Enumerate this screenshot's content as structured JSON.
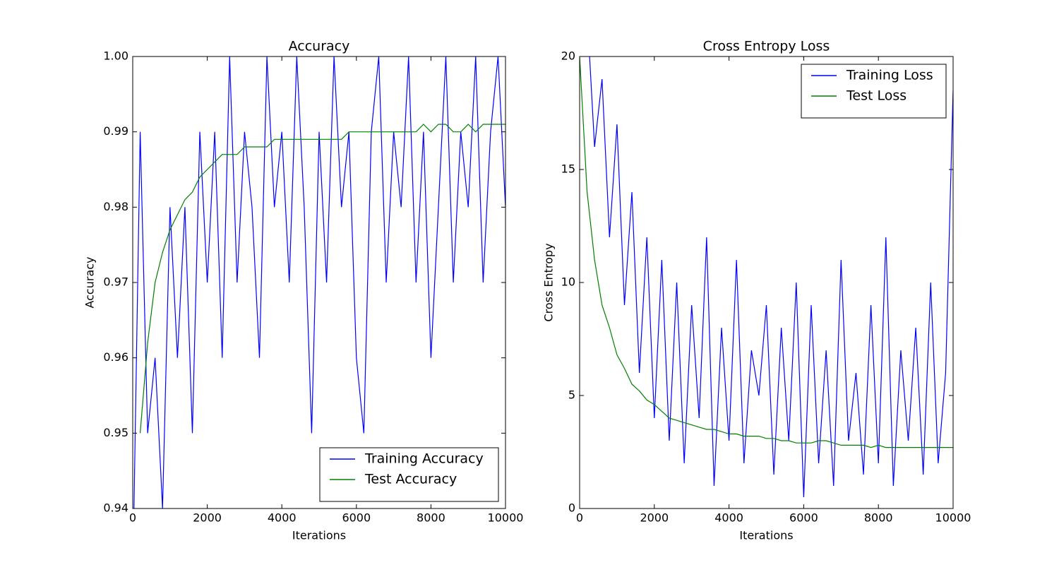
{
  "chart_data": [
    {
      "type": "line",
      "title": "Accuracy",
      "xlabel": "Iterations",
      "ylabel": "Accuracy",
      "x": [
        0,
        200,
        400,
        600,
        800,
        1000,
        1200,
        1400,
        1600,
        1800,
        2000,
        2200,
        2400,
        2600,
        2800,
        3000,
        3200,
        3400,
        3600,
        3800,
        4000,
        4200,
        4400,
        4600,
        4800,
        5000,
        5200,
        5400,
        5600,
        5800,
        6000,
        6200,
        6400,
        6600,
        6800,
        7000,
        7200,
        7400,
        7600,
        7800,
        8000,
        8200,
        8400,
        8600,
        8800,
        9000,
        9200,
        9400,
        9600,
        9800,
        10000
      ],
      "series": [
        {
          "name": "Training Accuracy",
          "color": "#0000ff",
          "values": [
            0.93,
            0.99,
            0.95,
            0.96,
            0.94,
            0.98,
            0.96,
            0.98,
            0.95,
            0.99,
            0.97,
            0.99,
            0.96,
            1.0,
            0.97,
            0.99,
            0.98,
            0.96,
            1.0,
            0.98,
            0.99,
            0.97,
            1.0,
            0.98,
            0.95,
            0.99,
            0.97,
            1.0,
            0.98,
            0.99,
            0.96,
            0.95,
            0.99,
            1.0,
            0.97,
            0.99,
            0.98,
            1.0,
            0.97,
            0.99,
            0.96,
            0.98,
            1.0,
            0.97,
            0.99,
            0.98,
            1.0,
            0.97,
            0.99,
            1.0,
            0.98
          ]
        },
        {
          "name": "Test Accuracy",
          "color": "#008000",
          "values": [
            null,
            0.95,
            0.962,
            0.97,
            0.974,
            0.977,
            0.979,
            0.981,
            0.982,
            0.984,
            0.985,
            0.986,
            0.987,
            0.987,
            0.987,
            0.988,
            0.988,
            0.988,
            0.988,
            0.989,
            0.989,
            0.989,
            0.989,
            0.989,
            0.989,
            0.989,
            0.989,
            0.989,
            0.989,
            0.99,
            0.99,
            0.99,
            0.99,
            0.99,
            0.99,
            0.99,
            0.99,
            0.99,
            0.99,
            0.991,
            0.99,
            0.991,
            0.991,
            0.99,
            0.99,
            0.991,
            0.99,
            0.991,
            0.991,
            0.991,
            0.991
          ]
        }
      ],
      "xlim": [
        0,
        10000
      ],
      "ylim": [
        0.94,
        1.0
      ],
      "xticks": [
        0,
        2000,
        4000,
        6000,
        8000,
        10000
      ],
      "yticks": [
        0.94,
        0.95,
        0.96,
        0.97,
        0.98,
        0.99,
        {
          "value": 1.0,
          "label": "1.00"
        }
      ],
      "legend": "lower right"
    },
    {
      "type": "line",
      "title": "Cross Entropy Loss",
      "xlabel": "Iterations",
      "ylabel": "Cross Entropy",
      "x": [
        0,
        200,
        400,
        600,
        800,
        1000,
        1200,
        1400,
        1600,
        1800,
        2000,
        2200,
        2400,
        2600,
        2800,
        3000,
        3200,
        3400,
        3600,
        3800,
        4000,
        4200,
        4400,
        4600,
        4800,
        5000,
        5200,
        5400,
        5600,
        5800,
        6000,
        6200,
        6400,
        6600,
        6800,
        7000,
        7200,
        7400,
        7600,
        7800,
        8000,
        8200,
        8400,
        8600,
        8800,
        9000,
        9200,
        9400,
        9600,
        9800,
        10000
      ],
      "series": [
        {
          "name": "Training Loss",
          "color": "#0000ff",
          "values": [
            20,
            22,
            16,
            19,
            12,
            17,
            9,
            14,
            6,
            12,
            4,
            11,
            3,
            10,
            2,
            9,
            4,
            12,
            1,
            8,
            3,
            11,
            2,
            7,
            5,
            9,
            1.5,
            8,
            3,
            10,
            0.5,
            9,
            2,
            7,
            1,
            11,
            3,
            6,
            1.5,
            9,
            2,
            12,
            1,
            7,
            3,
            8,
            1.5,
            10,
            2,
            6,
            18.5
          ]
        },
        {
          "name": "Test Loss",
          "color": "#008000",
          "values": [
            20,
            14,
            11,
            9,
            8,
            6.8,
            6.2,
            5.5,
            5.2,
            4.8,
            4.6,
            4.3,
            4,
            3.9,
            3.8,
            3.7,
            3.6,
            3.5,
            3.5,
            3.4,
            3.3,
            3.3,
            3.2,
            3.2,
            3.2,
            3.1,
            3.1,
            3.0,
            3.0,
            2.9,
            2.9,
            2.9,
            3.0,
            3.0,
            2.9,
            2.8,
            2.8,
            2.8,
            2.8,
            2.7,
            2.8,
            2.7,
            2.7,
            2.7,
            2.7,
            2.7,
            2.7,
            2.7,
            2.7,
            2.7,
            2.7
          ]
        }
      ],
      "xlim": [
        0,
        10000
      ],
      "ylim": [
        0,
        20
      ],
      "xticks": [
        0,
        2000,
        4000,
        6000,
        8000,
        10000
      ],
      "yticks": [
        0,
        5,
        10,
        15,
        20
      ],
      "legend": "upper right"
    }
  ]
}
